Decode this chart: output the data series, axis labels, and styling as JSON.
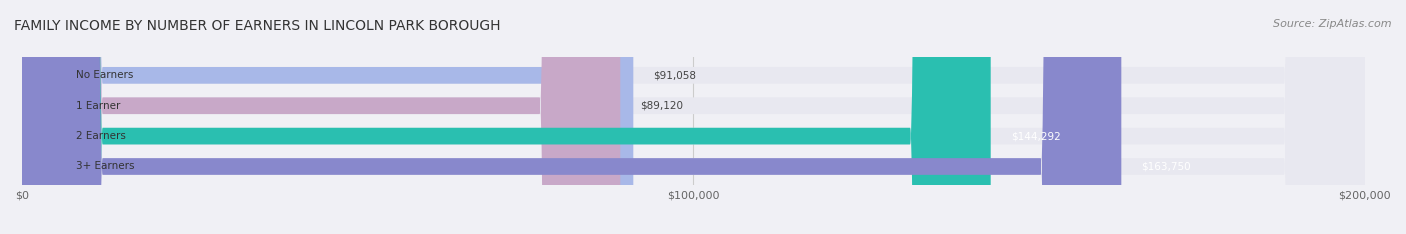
{
  "title": "FAMILY INCOME BY NUMBER OF EARNERS IN LINCOLN PARK BOROUGH",
  "source": "Source: ZipAtlas.com",
  "categories": [
    "No Earners",
    "1 Earner",
    "2 Earners",
    "3+ Earners"
  ],
  "values": [
    91058,
    89120,
    144292,
    163750
  ],
  "bar_colors": [
    "#a8b8e8",
    "#c8a8c8",
    "#2abfb0",
    "#8888cc"
  ],
  "label_colors": [
    "#555555",
    "#555555",
    "#ffffff",
    "#ffffff"
  ],
  "value_labels": [
    "$91,058",
    "$89,120",
    "$144,292",
    "$163,750"
  ],
  "xlim": [
    0,
    200000
  ],
  "xticks": [
    0,
    100000,
    200000
  ],
  "xtick_labels": [
    "$0",
    "$100,000",
    "$200,000"
  ],
  "bar_height": 0.55,
  "background_color": "#f0f0f5",
  "bar_bg_color": "#e8e8f0",
  "title_fontsize": 10,
  "source_fontsize": 8
}
